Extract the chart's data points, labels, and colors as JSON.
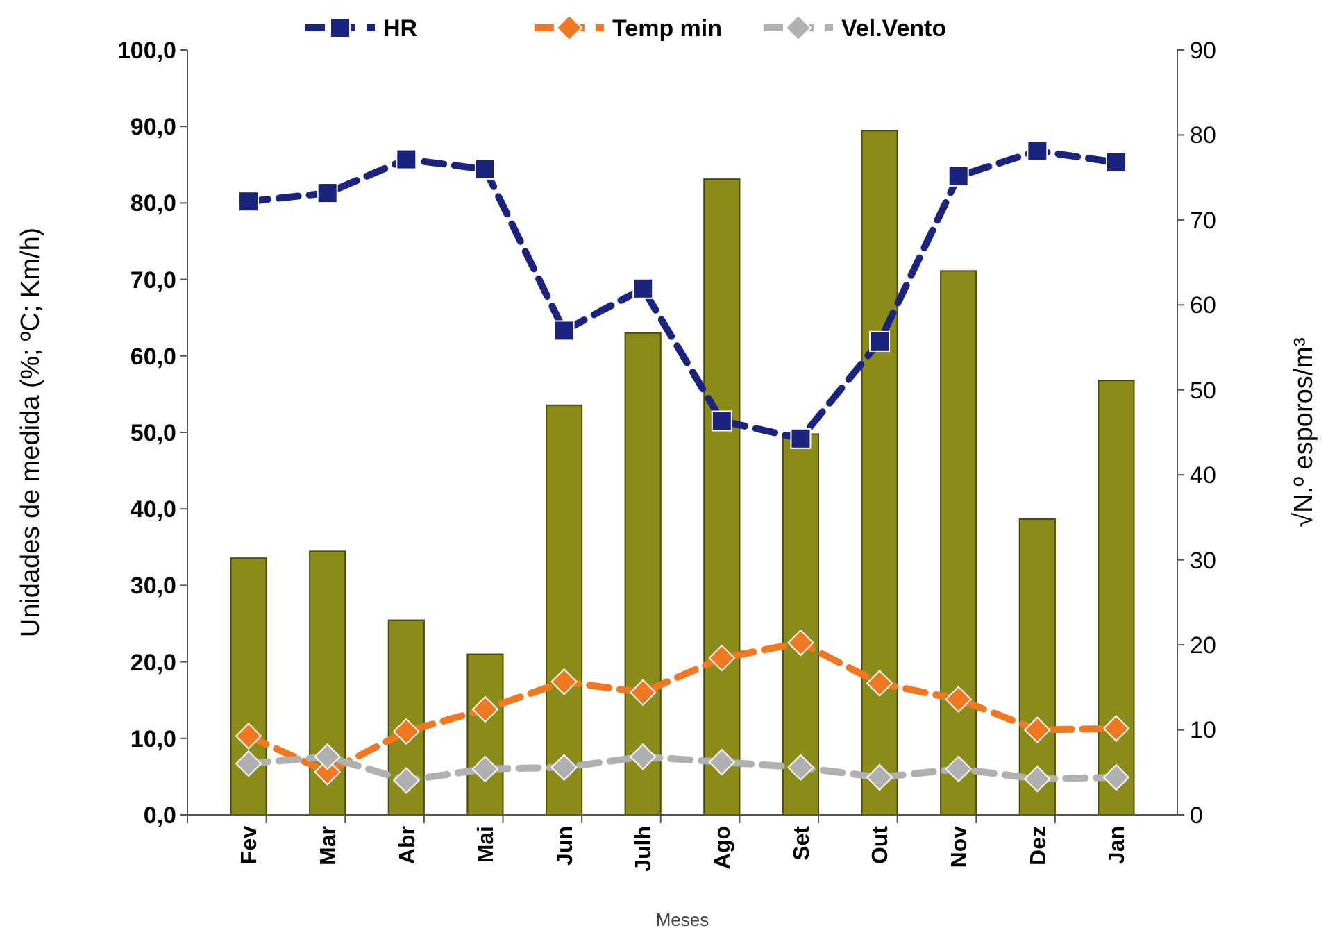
{
  "chart_data": {
    "type": "bar",
    "xlabel": "Meses",
    "ylabel": "Unidades de medida (%; ºC;  Km/h)",
    "y2label": "√N.º esporos/m³",
    "categories": [
      "Fev",
      "Mar",
      "Abr",
      "Mai",
      "Jun",
      "Julh",
      "Ago",
      "Set",
      "Out",
      "Nov",
      "Dez",
      "Jan"
    ],
    "series": [
      {
        "axis": "y2",
        "color": "#8b8b1a",
        "values": [
          30.2,
          31.0,
          22.9,
          18.9,
          48.2,
          56.7,
          74.8,
          44.8,
          80.5,
          64.0,
          34.8,
          51.1
        ]
      },
      {
        "type": "line",
        "name": "HR",
        "color": "#1a237e",
        "marker": "square",
        "line_style": "dashed",
        "values": [
          80.2,
          81.3,
          85.7,
          84.4,
          63.3,
          68.8,
          51.5,
          49.2,
          61.9,
          83.5,
          86.8,
          85.3
        ]
      },
      {
        "type": "line",
        "name": "Temp min",
        "color": "#f07820",
        "marker": "diamond",
        "line_style": "dashed",
        "values": [
          10.3,
          5.6,
          10.9,
          13.8,
          17.4,
          16.0,
          20.5,
          22.5,
          17.2,
          15.1,
          11.1,
          11.3
        ]
      },
      {
        "type": "line",
        "name": "Vel.Vento",
        "color": "#b0b0b0",
        "marker": "diamond",
        "line_style": "dashed",
        "values": [
          6.7,
          7.6,
          4.5,
          6.0,
          6.2,
          7.6,
          6.9,
          6.2,
          4.9,
          6.0,
          4.7,
          4.9
        ]
      }
    ],
    "ylim": [
      0,
      100
    ],
    "yticks": [
      {
        "value": 0,
        "label": "0,0"
      },
      {
        "value": 10,
        "label": "10,0"
      },
      {
        "value": 20,
        "label": "20,0"
      },
      {
        "value": 30,
        "label": "30,0"
      },
      {
        "value": 40,
        "label": "40,0"
      },
      {
        "value": 50,
        "label": "50,0"
      },
      {
        "value": 60,
        "label": "60,0"
      },
      {
        "value": 70,
        "label": "70,0"
      },
      {
        "value": 80,
        "label": "80,0"
      },
      {
        "value": 90,
        "label": "90,0"
      },
      {
        "value": 100,
        "label": "100,0"
      }
    ],
    "y2lim": [
      0,
      90
    ],
    "y2ticks": [
      0,
      10,
      20,
      30,
      40,
      50,
      60,
      70,
      80,
      90
    ],
    "legend": "top",
    "grid": false
  }
}
